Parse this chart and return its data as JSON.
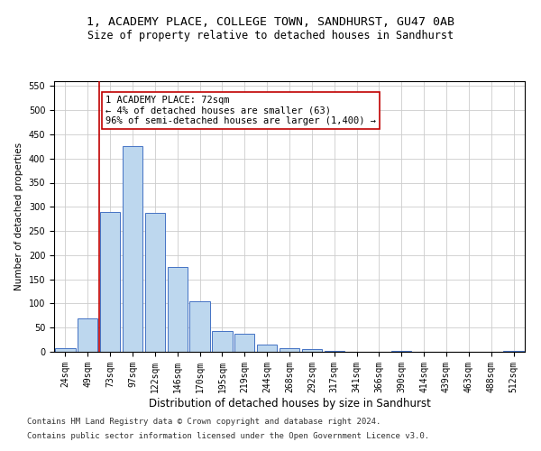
{
  "title1": "1, ACADEMY PLACE, COLLEGE TOWN, SANDHURST, GU47 0AB",
  "title2": "Size of property relative to detached houses in Sandhurst",
  "xlabel": "Distribution of detached houses by size in Sandhurst",
  "ylabel": "Number of detached properties",
  "categories": [
    "24sqm",
    "49sqm",
    "73sqm",
    "97sqm",
    "122sqm",
    "146sqm",
    "170sqm",
    "195sqm",
    "219sqm",
    "244sqm",
    "268sqm",
    "292sqm",
    "317sqm",
    "341sqm",
    "366sqm",
    "390sqm",
    "414sqm",
    "439sqm",
    "463sqm",
    "488sqm",
    "512sqm"
  ],
  "values": [
    8,
    70,
    290,
    425,
    287,
    175,
    105,
    43,
    38,
    15,
    8,
    5,
    2,
    0,
    0,
    2,
    0,
    0,
    0,
    0,
    2
  ],
  "bar_color": "#bdd7ee",
  "bar_edge_color": "#4472c4",
  "vline_x": 1.5,
  "vline_color": "#c00000",
  "annotation_line1": "1 ACADEMY PLACE: 72sqm",
  "annotation_line2": "← 4% of detached houses are smaller (63)",
  "annotation_line3": "96% of semi-detached houses are larger (1,400) →",
  "annotation_box_color": "#ffffff",
  "annotation_box_edge": "#c00000",
  "ylim": [
    0,
    560
  ],
  "yticks": [
    0,
    50,
    100,
    150,
    200,
    250,
    300,
    350,
    400,
    450,
    500,
    550
  ],
  "footnote1": "Contains HM Land Registry data © Crown copyright and database right 2024.",
  "footnote2": "Contains public sector information licensed under the Open Government Licence v3.0.",
  "title1_fontsize": 9.5,
  "title2_fontsize": 8.5,
  "xlabel_fontsize": 8.5,
  "ylabel_fontsize": 7.5,
  "tick_fontsize": 7,
  "annot_fontsize": 7.5,
  "footnote_fontsize": 6.5,
  "bg_color": "#ffffff",
  "grid_color": "#cccccc"
}
